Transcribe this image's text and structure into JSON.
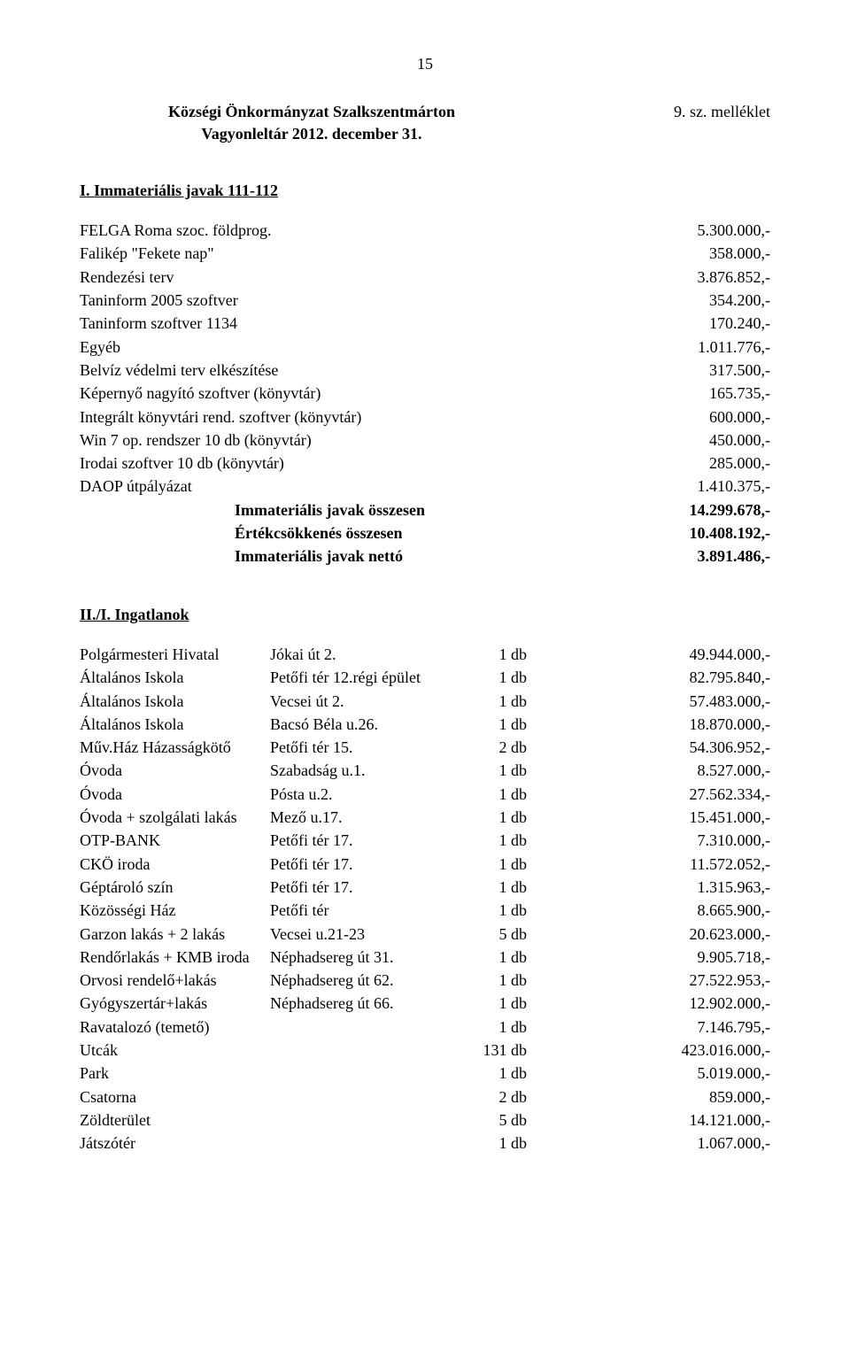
{
  "page_number": "15",
  "header": {
    "line1": "Községi Önkormányzat Szalkszentmárton",
    "line2": "Vagyonleltár 2012. december 31.",
    "attachment": "9. sz. melléklet"
  },
  "section1": {
    "heading": "I. Immateriális javak 111-112",
    "rows": [
      {
        "label": "FELGA Roma szoc. földprog.",
        "value": "5.300.000,-"
      },
      {
        "label": "Falikép \"Fekete nap\"",
        "value": "358.000,-"
      },
      {
        "label": "Rendezési terv",
        "value": "3.876.852,-"
      },
      {
        "label": "Taninform 2005 szoftver",
        "value": "354.200,-"
      },
      {
        "label": "Taninform szoftver 1134",
        "value": "170.240,-"
      },
      {
        "label": "Egyéb",
        "value": "1.011.776,-"
      },
      {
        "label": "Belvíz védelmi terv elkészítése",
        "value": "317.500,-"
      },
      {
        "label": "Képernyő nagyító szoftver (könyvtár)",
        "value": "165.735,-"
      },
      {
        "label": "Integrált könyvtári rend. szoftver (könyvtár)",
        "value": "600.000,-"
      },
      {
        "label": "Win 7 op. rendszer 10 db (könyvtár)",
        "value": "450.000,-"
      },
      {
        "label": "Irodai szoftver 10 db (könyvtár)",
        "value": "285.000,-"
      },
      {
        "label": "DAOP útpályázat",
        "value": "1.410.375,-"
      }
    ],
    "totals": [
      {
        "label": "Immateriális javak összesen",
        "value": "14.299.678,-"
      },
      {
        "label": "Értékcsökkenés összesen",
        "value": "10.408.192,-"
      },
      {
        "label": "Immateriális javak nettó",
        "value": "3.891.486,-"
      }
    ]
  },
  "section2": {
    "heading": "II./I.  Ingatlanok",
    "rows": [
      {
        "c1": "Polgármesteri Hivatal",
        "c2": "Jókai út 2.",
        "c3": "1 db",
        "c4": "49.944.000,-"
      },
      {
        "c1": "Általános Iskola",
        "c2": "Petőfi tér 12.régi épület",
        "c3": "1 db",
        "c4": "82.795.840,-"
      },
      {
        "c1": "Általános Iskola",
        "c2": "Vecsei út 2.",
        "c3": "1 db",
        "c4": "57.483.000,-"
      },
      {
        "c1": "Általános Iskola",
        "c2": "Bacsó Béla u.26.",
        "c3": "1 db",
        "c4": "18.870.000,-"
      },
      {
        "c1": "Műv.Ház Házasságkötő",
        "c2": "Petőfi tér 15.",
        "c3": "2 db",
        "c4": "54.306.952,-"
      },
      {
        "c1": "Óvoda",
        "c2": "Szabadság u.1.",
        "c3": "1 db",
        "c4": "8.527.000,-"
      },
      {
        "c1": "Óvoda",
        "c2": "Pósta u.2.",
        "c3": "1 db",
        "c4": "27.562.334,-"
      },
      {
        "c1": "Óvoda + szolgálati lakás",
        "c2": "Mező u.17.",
        "c3": "1 db",
        "c4": "15.451.000,-"
      },
      {
        "c1": "OTP-BANK",
        "c2": "Petőfi tér 17.",
        "c3": "1 db",
        "c4": "7.310.000,-"
      },
      {
        "c1": "CKÖ iroda",
        "c2": "Petőfi tér 17.",
        "c3": "1 db",
        "c4": "11.572.052,-"
      },
      {
        "c1": "Géptároló szín",
        "c2": "Petőfi tér 17.",
        "c3": "1 db",
        "c4": "1.315.963,-"
      },
      {
        "c1": "Közösségi Ház",
        "c2": "Petőfi tér",
        "c3": "1 db",
        "c4": "8.665.900,-"
      },
      {
        "c1": "Garzon lakás + 2 lakás",
        "c2": "Vecsei u.21-23",
        "c3": "5 db",
        "c4": "20.623.000,-"
      },
      {
        "c1": "Rendőrlakás + KMB iroda",
        "c2": "Néphadsereg út 31.",
        "c3": "1 db",
        "c4": "9.905.718,-"
      },
      {
        "c1": "Orvosi rendelő+lakás",
        "c2": "Néphadsereg út 62.",
        "c3": "1 db",
        "c4": "27.522.953,-"
      },
      {
        "c1": "Gyógyszertár+lakás",
        "c2": "Néphadsereg út 66.",
        "c3": "1 db",
        "c4": "12.902.000,-"
      },
      {
        "c1": "Ravatalozó (temető)",
        "c2": "",
        "c3": "1 db",
        "c4": "7.146.795,-"
      },
      {
        "c1": "Utcák",
        "c2": "",
        "c3": "131 db",
        "c4": "423.016.000,-"
      },
      {
        "c1": "Park",
        "c2": "",
        "c3": "1 db",
        "c4": "5.019.000,-"
      },
      {
        "c1": "Csatorna",
        "c2": "",
        "c3": "2 db",
        "c4": "859.000,-"
      },
      {
        "c1": "Zöldterület",
        "c2": "",
        "c3": "5 db",
        "c4": "14.121.000,-"
      },
      {
        "c1": "Játszótér",
        "c2": "",
        "c3": "1 db",
        "c4": "1.067.000,-"
      }
    ]
  }
}
